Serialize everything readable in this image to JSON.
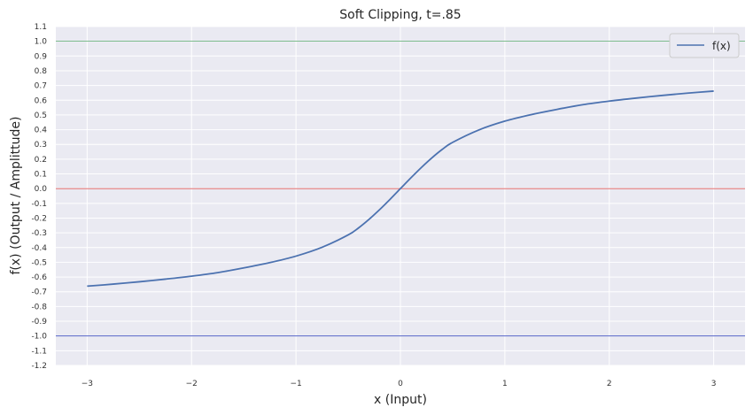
{
  "chart_data": {
    "type": "line",
    "title": "Soft Clipping, t=.85",
    "xlabel": "x (Input)",
    "ylabel": "f(x) (Output / Amplittude)",
    "xlim": [
      -3.3,
      3.3
    ],
    "ylim": [
      -1.2,
      1.1
    ],
    "grid": true,
    "legend_position": "top-right",
    "x_ticks": [
      -3,
      -2,
      -1,
      0,
      1,
      2,
      3
    ],
    "x_tick_labels": [
      "−3",
      "−2",
      "−1",
      "0",
      "1",
      "2",
      "3"
    ],
    "y_ticks": [
      -1.2,
      -1.1,
      -1.0,
      -0.9,
      -0.8,
      -0.7,
      -0.6,
      -0.5,
      -0.4,
      -0.3,
      -0.2,
      -0.1,
      0.0,
      0.1,
      0.2,
      0.3,
      0.4,
      0.5,
      0.6,
      0.7,
      0.8,
      0.9,
      1.0,
      1.1
    ],
    "y_tick_labels": [
      "-1.2",
      "-1.1",
      "-1.0",
      "-0.9",
      "-0.8",
      "-0.7",
      "-0.6",
      "-0.5",
      "-0.4",
      "-0.3",
      "-0.2",
      "-0.1",
      "0.0",
      "0.1",
      "0.2",
      "0.3",
      "0.4",
      "0.5",
      "0.6",
      "0.7",
      "0.8",
      "0.9",
      "1.0",
      "1.1"
    ],
    "series": [
      {
        "name": "f(x)",
        "color": "#4c72b0",
        "x": [
          -3.0,
          -2.75,
          -2.5,
          -2.25,
          -2.0,
          -1.75,
          -1.5,
          -1.25,
          -1.0,
          -0.75,
          -0.5,
          -0.4,
          -0.3,
          -0.2,
          -0.1,
          0.0,
          0.1,
          0.2,
          0.3,
          0.4,
          0.5,
          0.75,
          1.0,
          1.25,
          1.5,
          1.75,
          2.0,
          2.25,
          2.5,
          2.75,
          3.0
        ],
        "y": [
          -0.662,
          -0.648,
          -0.632,
          -0.614,
          -0.594,
          -0.57,
          -0.538,
          -0.502,
          -0.458,
          -0.398,
          -0.314,
          -0.266,
          -0.208,
          -0.143,
          -0.073,
          0.0,
          0.073,
          0.143,
          0.208,
          0.266,
          0.314,
          0.398,
          0.458,
          0.502,
          0.538,
          0.57,
          0.594,
          0.614,
          0.632,
          0.648,
          0.662
        ]
      }
    ],
    "reference_lines": [
      {
        "y": 1.0,
        "color": "#55a868"
      },
      {
        "y": 0.0,
        "color": "#e05a5a"
      },
      {
        "y": -1.0,
        "color": "#3b4cc0"
      }
    ],
    "colors": {
      "plot_background": "#eaeaf2",
      "grid": "#ffffff"
    }
  }
}
